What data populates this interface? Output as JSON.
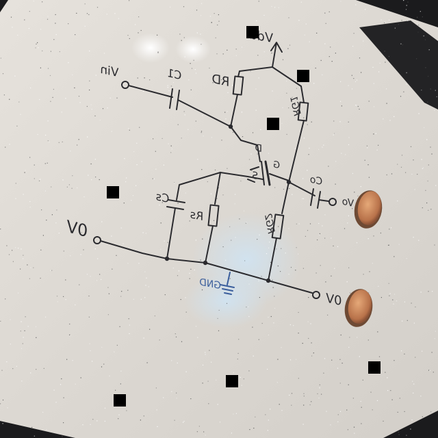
{
  "labels": {
    "vdd": "Vdd",
    "vin": "Vin",
    "c1": "C1",
    "rd": "RD",
    "rg1": "RG1",
    "d": "D",
    "g": "G",
    "s": "S",
    "co": "Co",
    "vo": "Vo",
    "cs": "Cs",
    "rs": "Rs",
    "rg2": "RG2",
    "gnd": "GND",
    "zero_v_left": "0V",
    "zero_v_right": "0V"
  },
  "colors": {
    "board": "#dedbd6",
    "ink": "#2a2a2e",
    "gnd_ink": "#3a5e9c",
    "frame": "#1a1a1a",
    "magnet": "#c9865a"
  }
}
